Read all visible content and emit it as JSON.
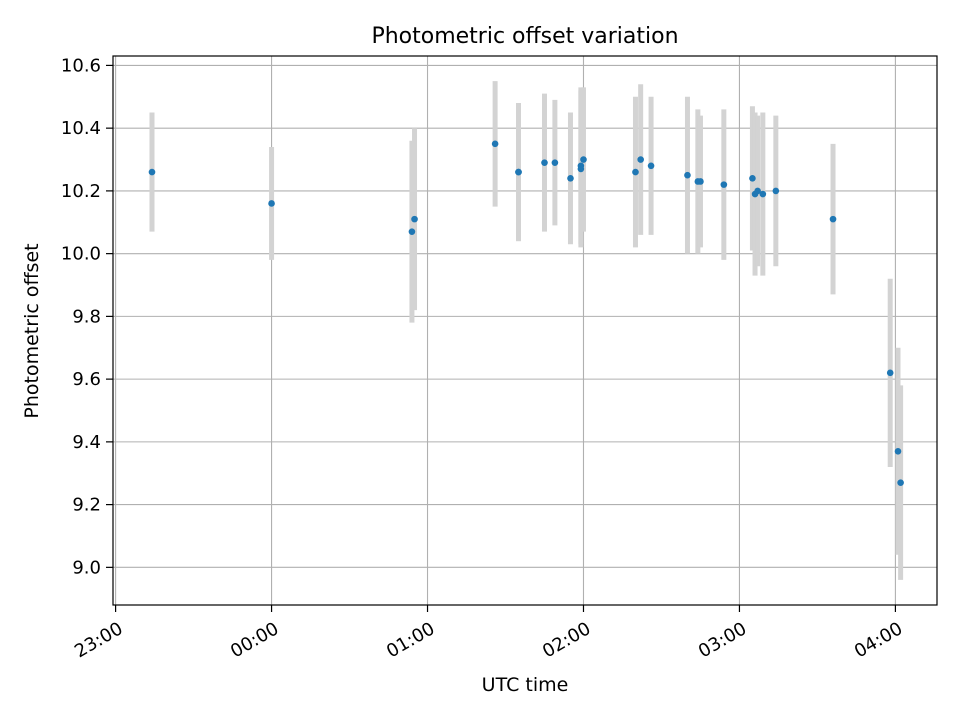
{
  "chart_data": {
    "type": "scatter",
    "title": "Photometric offset variation",
    "xlabel": "UTC time",
    "ylabel": "Photometric offset",
    "x_unit": "hours",
    "xlim": [
      "22:59",
      "04:16"
    ],
    "ylim": [
      8.88,
      10.63
    ],
    "x_ticks": [
      "23:00",
      "00:00",
      "01:00",
      "02:00",
      "03:00",
      "04:00"
    ],
    "y_ticks": [
      "9.0",
      "9.2",
      "9.4",
      "9.6",
      "9.8",
      "10.0",
      "10.2",
      "10.4",
      "10.6"
    ],
    "grid": true,
    "colors": {
      "marker": "#1f77b4",
      "errorbar": "#d3d3d3",
      "grid": "#b0b0b0"
    },
    "series": [
      {
        "points": [
          {
            "t": "23:14",
            "y": 10.26,
            "err": 0.19
          },
          {
            "t": "00:00",
            "y": 10.16,
            "err": 0.18
          },
          {
            "t": "00:54",
            "y": 10.07,
            "err": 0.29
          },
          {
            "t": "00:55",
            "y": 10.11,
            "err": 0.29
          },
          {
            "t": "01:26",
            "y": 10.35,
            "err": 0.2
          },
          {
            "t": "01:35",
            "y": 10.26,
            "err": 0.22
          },
          {
            "t": "01:35",
            "y": 10.26,
            "err": 0.22
          },
          {
            "t": "01:45",
            "y": 10.29,
            "err": 0.22
          },
          {
            "t": "01:49",
            "y": 10.29,
            "err": 0.2
          },
          {
            "t": "01:55",
            "y": 10.24,
            "err": 0.21
          },
          {
            "t": "01:59",
            "y": 10.27,
            "err": 0.25
          },
          {
            "t": "01:59",
            "y": 10.28,
            "err": 0.25
          },
          {
            "t": "02:00",
            "y": 10.3,
            "err": 0.23
          },
          {
            "t": "02:20",
            "y": 10.26,
            "err": 0.24
          },
          {
            "t": "02:22",
            "y": 10.3,
            "err": 0.24
          },
          {
            "t": "02:26",
            "y": 10.28,
            "err": 0.22
          },
          {
            "t": "02:40",
            "y": 10.25,
            "err": 0.25
          },
          {
            "t": "02:44",
            "y": 10.23,
            "err": 0.23
          },
          {
            "t": "02:45",
            "y": 10.23,
            "err": 0.21
          },
          {
            "t": "02:54",
            "y": 10.22,
            "err": 0.24
          },
          {
            "t": "03:05",
            "y": 10.24,
            "err": 0.23
          },
          {
            "t": "03:06",
            "y": 10.19,
            "err": 0.26
          },
          {
            "t": "03:07",
            "y": 10.2,
            "err": 0.24
          },
          {
            "t": "03:09",
            "y": 10.19,
            "err": 0.26
          },
          {
            "t": "03:14",
            "y": 10.2,
            "err": 0.24
          },
          {
            "t": "03:36",
            "y": 10.11,
            "err": 0.24
          },
          {
            "t": "03:58",
            "y": 9.62,
            "err": 0.3
          },
          {
            "t": "04:01",
            "y": 9.37,
            "err": 0.33
          },
          {
            "t": "04:02",
            "y": 9.27,
            "err": 0.31
          }
        ]
      }
    ]
  }
}
